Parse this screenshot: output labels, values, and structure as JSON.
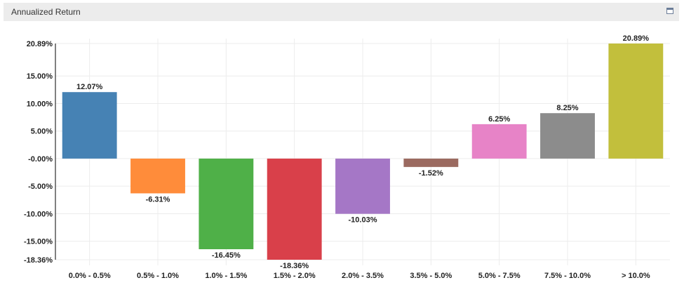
{
  "panel": {
    "title": "Annualized Return"
  },
  "chart_data": {
    "type": "bar",
    "title": "",
    "xlabel": "",
    "ylabel": "",
    "categories": [
      "0.0% - 0.5%",
      "0.5% - 1.0%",
      "1.0% - 1.5%",
      "1.5% - 2.0%",
      "2.0% - 3.5%",
      "3.5% - 5.0%",
      "5.0% - 7.5%",
      "7.5% - 10.0%",
      "> 10.0%"
    ],
    "values": [
      12.07,
      -6.31,
      -16.45,
      -18.36,
      -10.03,
      -1.52,
      6.25,
      8.25,
      20.89
    ],
    "data_labels": [
      "12.07%",
      "-6.31%",
      "-16.45%",
      "-18.36%",
      "-10.03%",
      "-1.52%",
      "6.25%",
      "8.25%",
      "20.89%"
    ],
    "colors": [
      "#4682b4",
      "#ff8c3a",
      "#4fb048",
      "#d9404a",
      "#a577c6",
      "#9b6a60",
      "#e783c7",
      "#8c8c8c",
      "#c2bf3c"
    ],
    "ylim": [
      -18.36,
      20.89
    ],
    "y_ticks": [
      20.89,
      15,
      10,
      5,
      0,
      -5,
      -10,
      -15,
      -18.36
    ],
    "y_tick_labels": [
      "20.89%",
      "15.00%",
      "10.00%",
      "5.00%",
      "-0.00%",
      "-5.00%",
      "-10.00%",
      "-15.00%",
      "-18.36%"
    ],
    "grid": true,
    "legend": "none"
  }
}
